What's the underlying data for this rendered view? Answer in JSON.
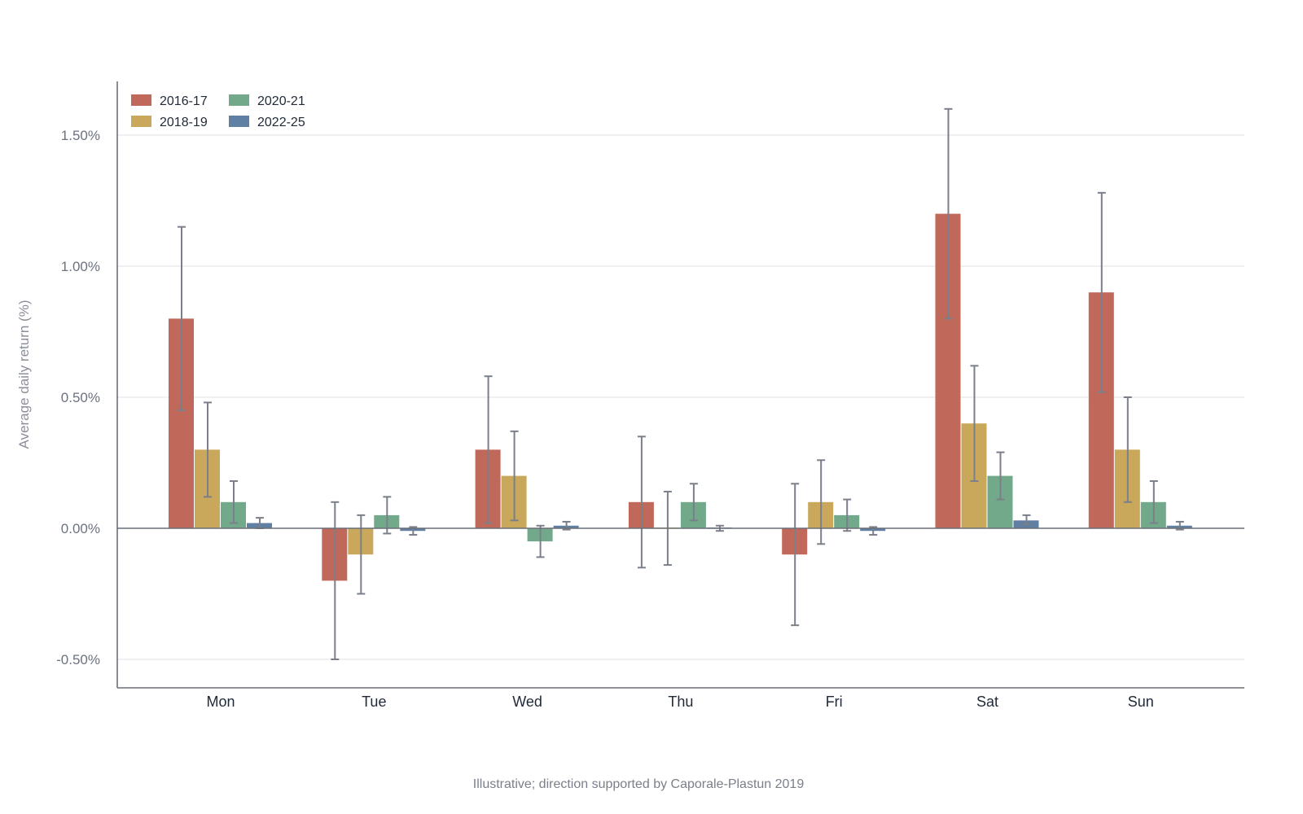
{
  "chart_data": {
    "type": "bar",
    "title": "",
    "xlabel": "",
    "ylabel": "Average daily return (%)",
    "caption": "Illustrative; direction supported by Caporale-Plastun 2019",
    "categories": [
      "Mon",
      "Tue",
      "Wed",
      "Thu",
      "Fri",
      "Sat",
      "Sun"
    ],
    "ylim": [
      -0.6,
      1.7
    ],
    "yticks": [
      -0.5,
      0.0,
      0.5,
      1.0,
      1.5
    ],
    "ytick_labels": [
      "-0.50%",
      "0.00%",
      "0.50%",
      "1.00%",
      "1.50%"
    ],
    "grid": true,
    "legend_position": "top-left",
    "error_bar_color": "#7a7f8a",
    "series": [
      {
        "name": "2016-17",
        "color": "#c0695a",
        "values": [
          0.8,
          -0.2,
          0.3,
          0.1,
          -0.1,
          1.2,
          0.9
        ],
        "err_low": [
          0.45,
          -0.5,
          0.02,
          -0.15,
          -0.37,
          0.8,
          0.52
        ],
        "err_high": [
          1.15,
          0.1,
          0.58,
          0.35,
          0.17,
          1.6,
          1.28
        ]
      },
      {
        "name": "2018-19",
        "color": "#c9a85c",
        "values": [
          0.3,
          -0.1,
          0.2,
          0.0,
          0.1,
          0.4,
          0.3
        ],
        "err_low": [
          0.12,
          -0.25,
          0.03,
          -0.14,
          -0.06,
          0.18,
          0.1
        ],
        "err_high": [
          0.48,
          0.05,
          0.37,
          0.14,
          0.26,
          0.62,
          0.5
        ]
      },
      {
        "name": "2020-21",
        "color": "#72a98a",
        "values": [
          0.1,
          0.05,
          -0.05,
          0.1,
          0.05,
          0.2,
          0.1
        ],
        "err_low": [
          0.02,
          -0.02,
          -0.11,
          0.03,
          -0.01,
          0.11,
          0.02
        ],
        "err_high": [
          0.18,
          0.12,
          0.01,
          0.17,
          0.11,
          0.29,
          0.18
        ]
      },
      {
        "name": "2022-25",
        "color": "#5f7fa3",
        "values": [
          0.02,
          -0.01,
          0.01,
          0.0,
          -0.01,
          0.03,
          0.01
        ],
        "err_low": [
          0.0,
          -0.025,
          -0.005,
          -0.01,
          -0.025,
          0.015,
          -0.005
        ],
        "err_high": [
          0.04,
          0.005,
          0.025,
          0.01,
          0.005,
          0.05,
          0.025
        ]
      }
    ]
  }
}
